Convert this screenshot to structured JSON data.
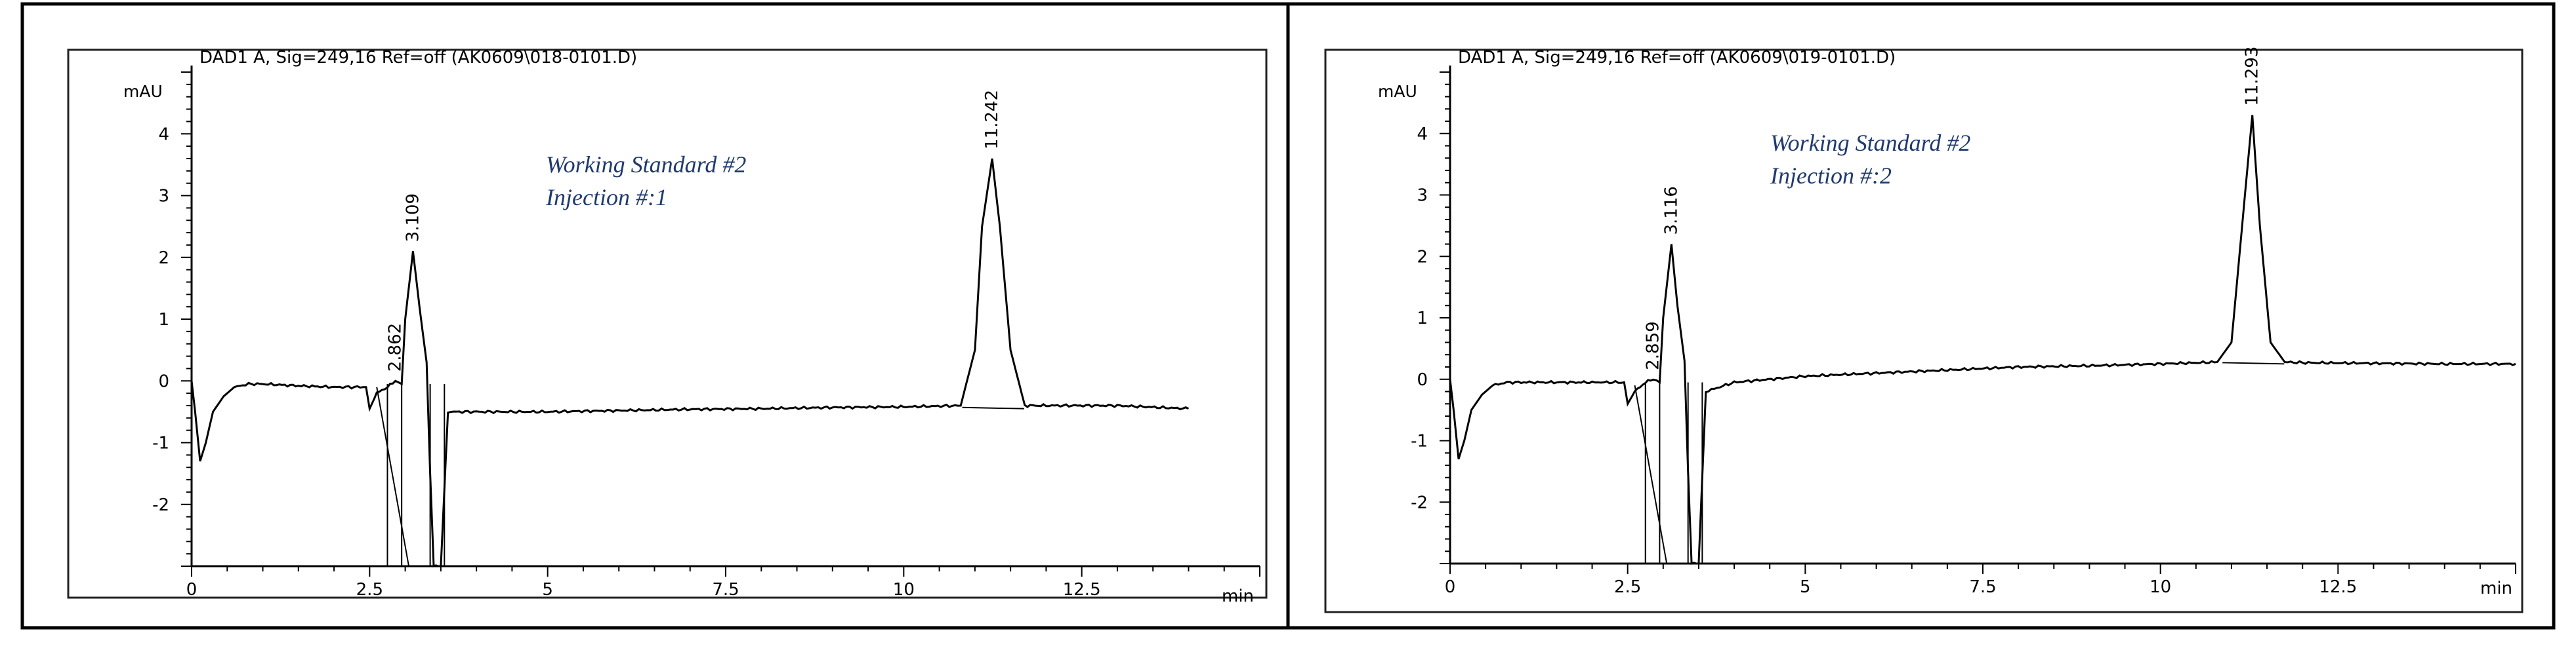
{
  "chart_data": [
    {
      "type": "line",
      "title": "DAD1 A, Sig=249,16 Ref=off (AK0609\\018-0101.D)",
      "ylabel": "mAU",
      "xlabel": "min",
      "xlim": [
        0,
        15
      ],
      "ylim": [
        -3,
        5
      ],
      "x_ticks": [
        "0",
        "2.5",
        "5",
        "7.5",
        "10",
        "12.5"
      ],
      "y_ticks": [
        "-2",
        "-1",
        "0",
        "1",
        "2",
        "3",
        "4"
      ],
      "annotations": [
        "Working Standard #2",
        "Injection #:1"
      ],
      "peaks": [
        {
          "label": "2.862",
          "x": 2.862,
          "y": 0.0
        },
        {
          "label": "3.109",
          "x": 3.109,
          "y": 2.1
        },
        {
          "label": "11.242",
          "x": 11.242,
          "y": 3.6
        }
      ],
      "series": [
        {
          "x": [
            0,
            0.05,
            0.12,
            0.2,
            0.3,
            0.45,
            0.6,
            0.8,
            1.0,
            1.5,
            2.0,
            2.45,
            2.5,
            2.6,
            2.75,
            2.862,
            2.95,
            3.0,
            3.109,
            3.2,
            3.3,
            3.35,
            3.4,
            3.5,
            3.6,
            4.0,
            5.0,
            6.0,
            7.0,
            8.0,
            9.0,
            10.0,
            10.8,
            11.0,
            11.1,
            11.242,
            11.35,
            11.5,
            11.7,
            12.0,
            13.0,
            14.0
          ],
          "y": [
            0.0,
            -0.5,
            -1.3,
            -1.0,
            -0.5,
            -0.25,
            -0.1,
            -0.05,
            -0.05,
            -0.08,
            -0.1,
            -0.1,
            -0.45,
            -0.2,
            -0.1,
            0.0,
            -0.05,
            1.0,
            2.1,
            1.2,
            0.3,
            -1.5,
            -3.0,
            -3.0,
            -0.5,
            -0.5,
            -0.5,
            -0.48,
            -0.46,
            -0.45,
            -0.43,
            -0.42,
            -0.4,
            0.5,
            2.5,
            3.6,
            2.5,
            0.5,
            -0.4,
            -0.4,
            -0.4,
            -0.45
          ]
        }
      ]
    },
    {
      "type": "line",
      "title": "DAD1 A, Sig=249,16 Ref=off (AK0609\\019-0101.D)",
      "ylabel": "mAU",
      "xlabel": "min",
      "xlim": [
        0,
        15
      ],
      "ylim": [
        -3,
        5
      ],
      "x_ticks": [
        "0",
        "2.5",
        "5",
        "7.5",
        "10",
        "12.5"
      ],
      "y_ticks": [
        "-2",
        "-1",
        "0",
        "1",
        "2",
        "3",
        "4"
      ],
      "annotations": [
        "Working Standard #2",
        "Injection #:2"
      ],
      "peaks": [
        {
          "label": "2.859",
          "x": 2.859,
          "y": 0.0
        },
        {
          "label": "3.116",
          "x": 3.116,
          "y": 2.2
        },
        {
          "label": "11.293",
          "x": 11.293,
          "y": 4.3
        }
      ],
      "series": [
        {
          "x": [
            0,
            0.05,
            0.12,
            0.2,
            0.3,
            0.45,
            0.6,
            0.8,
            1.0,
            1.5,
            2.0,
            2.45,
            2.5,
            2.6,
            2.75,
            2.859,
            2.95,
            3.0,
            3.116,
            3.2,
            3.3,
            3.35,
            3.4,
            3.5,
            3.6,
            4.0,
            5.0,
            6.0,
            7.0,
            8.0,
            9.0,
            10.0,
            10.8,
            11.0,
            11.15,
            11.293,
            11.4,
            11.55,
            11.75,
            12.0,
            13.0,
            14.0,
            15.0
          ],
          "y": [
            0.0,
            -0.5,
            -1.3,
            -1.0,
            -0.5,
            -0.25,
            -0.1,
            -0.05,
            -0.05,
            -0.05,
            -0.05,
            -0.05,
            -0.4,
            -0.2,
            -0.05,
            0.0,
            -0.05,
            1.0,
            2.2,
            1.2,
            0.3,
            -1.5,
            -3.0,
            -3.0,
            -0.2,
            -0.05,
            0.05,
            0.1,
            0.15,
            0.2,
            0.22,
            0.25,
            0.28,
            0.6,
            2.5,
            4.3,
            2.5,
            0.6,
            0.28,
            0.27,
            0.26,
            0.25,
            0.25
          ]
        }
      ]
    }
  ]
}
